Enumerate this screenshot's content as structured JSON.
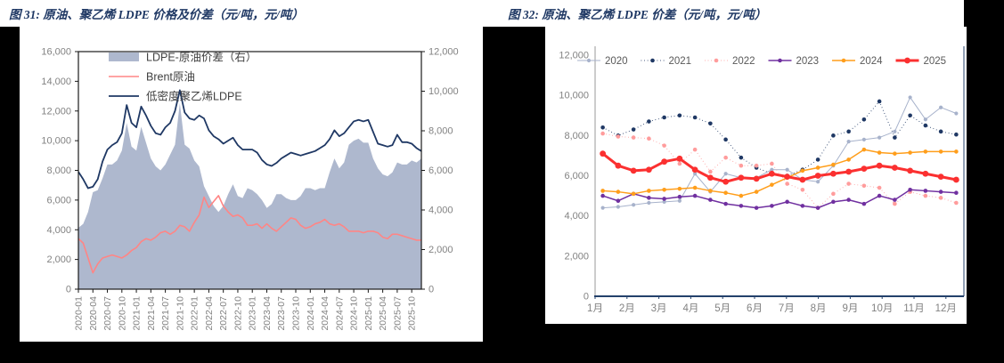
{
  "page": {
    "background": "#000000",
    "card_background": "#ffffff"
  },
  "figures": [
    {
      "id": "fig31",
      "title": "图 31:  原油、聚乙烯 LDPE 价格及价差（元/吨，元/吨）"
    },
    {
      "id": "fig32",
      "title": "图 32:  原油、聚乙烯 LDPE 价差（元/吨，元/吨）"
    }
  ],
  "chart_data": [
    {
      "type": "area",
      "title": "原油、聚乙烯 LDPE 价格及价差（元/吨，元/吨）",
      "x_frequency": "monthly",
      "x_start": "2020-01",
      "x_end": "2025-12",
      "x_tick_labels": [
        "2020-01",
        "2020-04",
        "2020-07",
        "2020-10",
        "2021-01",
        "2021-04",
        "2021-07",
        "2021-10",
        "2022-01",
        "2022-04",
        "2022-07",
        "2022-10",
        "2023-01",
        "2023-04",
        "2023-07",
        "2023-10",
        "2024-01",
        "2024-04",
        "2024-07",
        "2024-10",
        "2025-01",
        "2025-04",
        "2025-07",
        "2025-10"
      ],
      "left_axis": {
        "min": 0,
        "max": 16000,
        "step": 2000,
        "tick_labels": [
          "0",
          "2,000",
          "4,000",
          "6,000",
          "8,000",
          "10,000",
          "12,000",
          "14,000",
          "16,000"
        ]
      },
      "right_axis": {
        "min": 0,
        "max": 12000,
        "step": 2000,
        "tick_labels": [
          "0",
          "2,000",
          "4,000",
          "6,000",
          "8,000",
          "10,000",
          "12,000"
        ]
      },
      "grid": false,
      "legend_position": "top-left-inside",
      "series": [
        {
          "name": "LDPE-原油价差（右）",
          "type": "area",
          "axis": "right",
          "color": "#AEB8CE",
          "values": [
            3100,
            3300,
            3900,
            4900,
            5000,
            5600,
            6300,
            6300,
            6500,
            7000,
            8400,
            7200,
            7000,
            8200,
            7400,
            6600,
            6200,
            6000,
            6300,
            6800,
            7300,
            9400,
            7300,
            7100,
            6500,
            6200,
            5200,
            4700,
            4200,
            3900,
            4200,
            4800,
            5300,
            4700,
            4600,
            5100,
            5000,
            4800,
            4500,
            4100,
            4300,
            4800,
            4800,
            4600,
            4500,
            4500,
            4700,
            5100,
            5100,
            5000,
            5100,
            5100,
            5900,
            6600,
            6100,
            6400,
            7300,
            7500,
            7600,
            7400,
            7400,
            6600,
            6100,
            5800,
            5700,
            5900,
            6400,
            6300,
            6300,
            6500,
            6400,
            6600
          ]
        },
        {
          "name": "Brent原油",
          "type": "line",
          "axis": "left",
          "color": "#FF8585",
          "values": [
            3400,
            3100,
            2100,
            1100,
            1700,
            2100,
            2200,
            2300,
            2200,
            2100,
            2300,
            2600,
            2800,
            3200,
            3400,
            3300,
            3500,
            3800,
            3900,
            3700,
            3900,
            4300,
            4200,
            3900,
            4500,
            5000,
            6200,
            5500,
            5900,
            6300,
            5600,
            5200,
            4900,
            5000,
            4800,
            4300,
            4300,
            4400,
            4100,
            4400,
            4100,
            3900,
            4200,
            4500,
            4800,
            4700,
            4300,
            4100,
            4200,
            4400,
            4500,
            4700,
            4400,
            4300,
            4400,
            4200,
            3900,
            3900,
            3900,
            3800,
            3900,
            3900,
            3800,
            3500,
            3400,
            3700,
            3700,
            3600,
            3500,
            3400,
            3300,
            3300
          ]
        },
        {
          "name": "低密度聚乙烯LDPE",
          "type": "line",
          "axis": "left",
          "color": "#1F3864",
          "values": [
            7900,
            7400,
            6800,
            6900,
            7400,
            8600,
            9400,
            9700,
            9900,
            10500,
            12400,
            11200,
            10900,
            12300,
            11700,
            11000,
            10500,
            10400,
            10900,
            11200,
            12000,
            13400,
            11900,
            11500,
            11400,
            11700,
            11500,
            10700,
            10300,
            10100,
            9800,
            10000,
            10200,
            9700,
            9400,
            9400,
            9400,
            9200,
            8700,
            8400,
            8300,
            8500,
            8800,
            9000,
            9200,
            9100,
            9000,
            9100,
            9200,
            9300,
            9500,
            9700,
            10100,
            10700,
            10300,
            10500,
            10900,
            11300,
            11400,
            11300,
            11400,
            10600,
            9800,
            9700,
            9600,
            9700,
            10400,
            9900,
            9900,
            9800,
            9500,
            9300
          ]
        }
      ]
    },
    {
      "type": "line",
      "title": "原油、聚乙烯 LDPE 价差（元/吨，元/吨）",
      "x_frequency": "semi-monthly",
      "x_tick_labels": [
        "1月",
        "2月",
        "3月",
        "4月",
        "5月",
        "6月",
        "7月",
        "8月",
        "9月",
        "10月",
        "11月",
        "12月"
      ],
      "y_axis": {
        "min": 0,
        "max": 12000,
        "step": 2000,
        "tick_labels": [
          "0",
          "2,000",
          "4,000",
          "6,000",
          "8,000",
          "10,000",
          "12,000"
        ]
      },
      "grid": false,
      "legend_position": "top-inside",
      "series": [
        {
          "name": "2020",
          "color": "#A7B2CB",
          "width": 1,
          "marker": 2.1,
          "dash": "",
          "values": [
            4400,
            4450,
            4550,
            4650,
            4700,
            4750,
            6100,
            5200,
            6100,
            5900,
            5900,
            6300,
            6300,
            5800,
            5700,
            6500,
            7700,
            7800,
            7900,
            8200,
            9900,
            8800,
            9400,
            9100
          ]
        },
        {
          "name": "2021",
          "color": "#1F3864",
          "width": 1,
          "marker": 2.3,
          "dash": "0.8,2.8",
          "values": [
            8400,
            8000,
            8300,
            8700,
            8900,
            9000,
            8900,
            8600,
            7800,
            6900,
            6400,
            6100,
            6000,
            6300,
            6800,
            8000,
            8200,
            8800,
            9700,
            7900,
            9000,
            8500,
            8200,
            8050
          ]
        },
        {
          "name": "2022",
          "color": "#FF9C9C",
          "width": 1,
          "marker": 2.3,
          "dash": "0.8,2.8",
          "values": [
            8100,
            7950,
            7900,
            7850,
            7500,
            6600,
            7300,
            6200,
            6900,
            6500,
            6500,
            6600,
            5600,
            5300,
            4400,
            5100,
            5600,
            5500,
            5400,
            4600,
            5200,
            5000,
            4900,
            4650
          ]
        },
        {
          "name": "2023",
          "color": "#7030A0",
          "width": 1.5,
          "marker": 2.3,
          "dash": "",
          "values": [
            5000,
            4750,
            5100,
            4900,
            4850,
            4950,
            5000,
            4800,
            4600,
            4500,
            4400,
            4500,
            4700,
            4500,
            4400,
            4700,
            4800,
            4600,
            5000,
            4800,
            5300,
            5250,
            5200,
            5150
          ]
        },
        {
          "name": "2024",
          "color": "#FF9E1B",
          "width": 1.5,
          "marker": 2.3,
          "dash": "",
          "values": [
            5250,
            5200,
            5100,
            5250,
            5300,
            5350,
            5400,
            5250,
            5150,
            5000,
            5200,
            5550,
            5900,
            6250,
            6400,
            6550,
            6800,
            7300,
            7150,
            7100,
            7150,
            7200,
            7200,
            7200
          ]
        },
        {
          "name": "2025",
          "color": "#FB3030",
          "width": 3,
          "marker": 3.4,
          "dash": "",
          "values": [
            7100,
            6500,
            6250,
            6300,
            6700,
            6850,
            6300,
            5900,
            5700,
            5900,
            5850,
            6100,
            5950,
            5800,
            6000,
            6100,
            6200,
            6350,
            6500,
            6400,
            6250,
            6100,
            5950,
            5800
          ]
        }
      ]
    }
  ],
  "styles": {
    "axis_label_color": "#828282",
    "legend_text_color_fig31": "#404040",
    "legend_text_color_fig32": "#595959",
    "box_border_color": "#1a1a1a",
    "fig32_left_spine": "#9a9a9a",
    "fig32_bottom_spine": "#24416B"
  }
}
